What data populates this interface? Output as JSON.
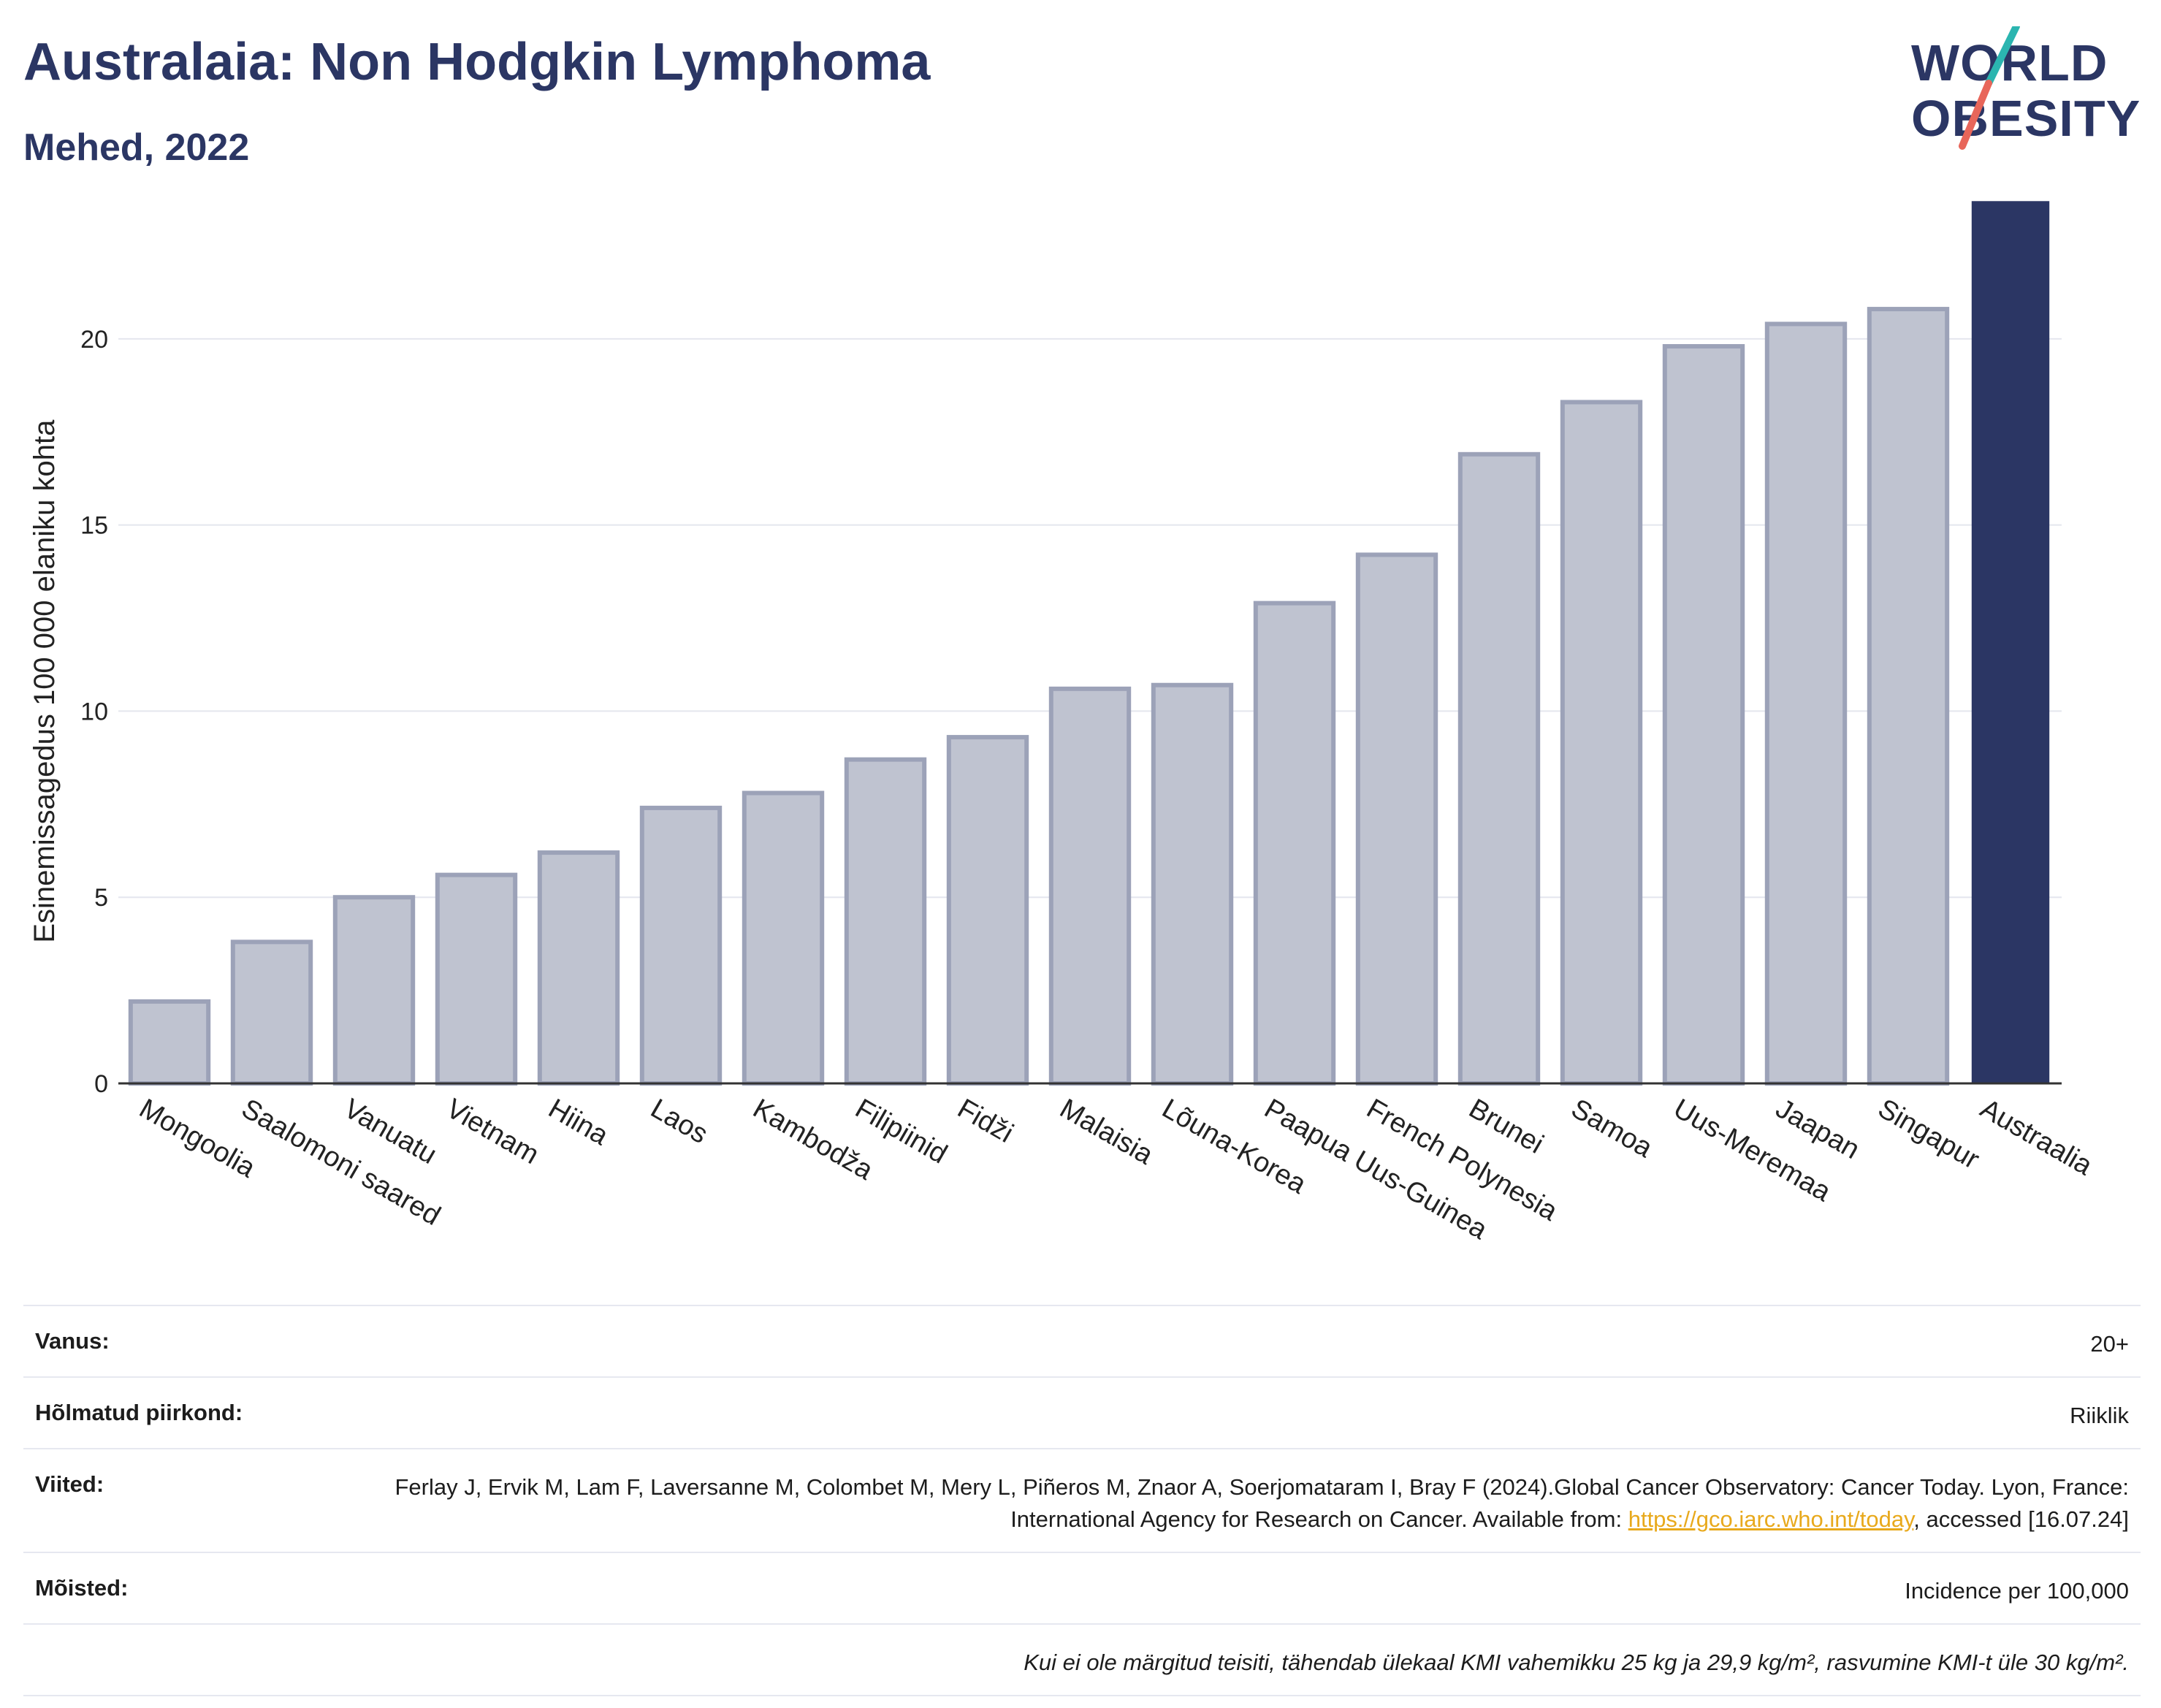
{
  "header": {
    "title": "Australaia: Non Hodgkin Lymphoma",
    "subtitle": "Mehed, 2022"
  },
  "logo": {
    "line1": "WORLD",
    "line2": "OBESITY",
    "colors": {
      "text": "#2b3664",
      "slash_top": "#2bb5b0",
      "slash_bottom": "#e8665a"
    }
  },
  "chart_data": {
    "type": "bar",
    "title": "",
    "xlabel": "",
    "ylabel": "Esinemissagedus 100 000 elaniku kohta",
    "ylim": [
      0,
      24
    ],
    "yticks": [
      0,
      5,
      10,
      15,
      20
    ],
    "grid": true,
    "categories": [
      "Mongoolia",
      "Saalomoni saared",
      "Vanuatu",
      "Vietnam",
      "Hiina",
      "Laos",
      "Kambodža",
      "Filipiinid",
      "Fidži",
      "Malaisia",
      "Lõuna-Korea",
      "Paapua Uus-Guinea",
      "French Polynesia",
      "Brunei",
      "Samoa",
      "Uus-Meremaa",
      "Jaapan",
      "Singapur",
      "Austraalia"
    ],
    "values": [
      2.2,
      3.8,
      5.0,
      5.6,
      6.2,
      7.4,
      7.8,
      8.7,
      9.3,
      10.6,
      10.7,
      12.9,
      14.2,
      16.9,
      18.3,
      19.8,
      20.4,
      20.8,
      23.7
    ],
    "highlight": "Austraalia",
    "colors": {
      "bar": "#bfc3d0",
      "bar_border": "#9ca2b8",
      "highlight": "#2b3664",
      "grid": "#e4e6ee",
      "axis": "#333333"
    }
  },
  "meta": {
    "rows": [
      {
        "key": "Vanus:",
        "value": "20+"
      },
      {
        "key": "Hõlmatud piirkond:",
        "value": "Riiklik"
      },
      {
        "key": "Viited:",
        "value_pre": "Ferlay J, Ervik M, Lam F, Laversanne M, Colombet M, Mery L, Piñeros M, Znaor A, Soerjomataram I, Bray F (2024).Global Cancer Observatory: Cancer Today. Lyon, France: International Agency for Research on Cancer. Available from: ",
        "link": "https://gco.iarc.who.int/today",
        "value_post": ", accessed [16.07.24]"
      },
      {
        "key": "Mõisted:",
        "value": "Incidence per 100,000"
      }
    ],
    "note": "Kui ei ole märgitud teisiti, tähendab ülekaal KMI vahemikku 25 kg ja 29,9 kg/m², rasvumine KMI-t üle 30 kg/m²."
  }
}
